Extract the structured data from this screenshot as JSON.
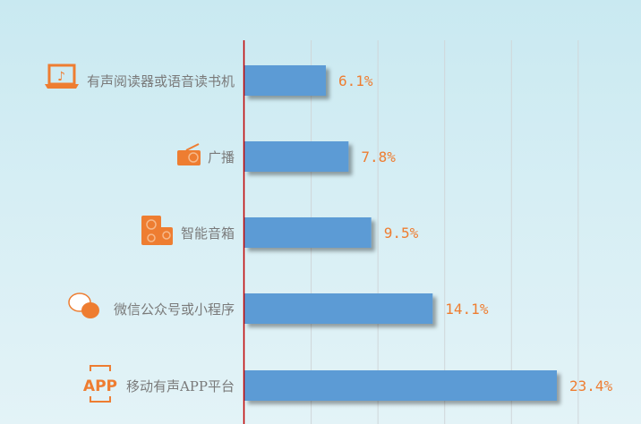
{
  "chart_data": {
    "type": "bar",
    "orientation": "horizontal",
    "categories": [
      "有声阅读器或语音读书机",
      "广播",
      "智能音箱",
      "微信公众号或小程序",
      "移动有声APP平台"
    ],
    "values": [
      6.1,
      7.8,
      9.5,
      14.1,
      23.4
    ],
    "data_labels": [
      "6.1%",
      "7.8%",
      "9.5%",
      "14.1%",
      "23.4%"
    ],
    "icons": [
      "laptop-music-icon",
      "radio-icon",
      "speaker-icon",
      "wechat-icon",
      "app-icon"
    ],
    "xlim": [
      0,
      30
    ],
    "grid": true,
    "colors": {
      "bar": "#5b9bd5",
      "label": "#ee7d31",
      "axis": "#c00000",
      "icon": "#ee7d31",
      "category_text": "#7a7a7a"
    }
  }
}
